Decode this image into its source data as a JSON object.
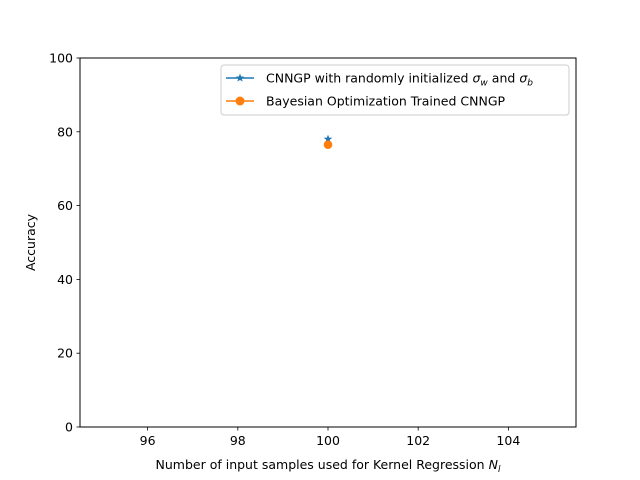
{
  "chart_data": {
    "type": "scatter",
    "title": "",
    "xlabel": "Number of input samples used for Kernel Regression",
    "xlabel_symbol": "N",
    "xlabel_subscript": "l",
    "ylabel": "Accuracy",
    "xlim": [
      94.5,
      105.5
    ],
    "ylim": [
      0,
      100
    ],
    "xticks": [
      96,
      98,
      100,
      102,
      104
    ],
    "yticks": [
      0,
      20,
      40,
      60,
      80,
      100
    ],
    "grid": false,
    "legend_position": "upper right",
    "series": [
      {
        "name": "CNNGP with randomly initialized",
        "name_sym1": "σ",
        "name_sub1": "w",
        "name_mid": "and",
        "name_sym2": "σ",
        "name_sub2": "b",
        "marker": "star",
        "color": "#1f77b4",
        "x": [
          100
        ],
        "y": [
          78
        ]
      },
      {
        "name": "Bayesian Optimization Trained CNNGP",
        "marker": "circle",
        "color": "#ff7f0e",
        "x": [
          100
        ],
        "y": [
          76.5
        ]
      }
    ]
  }
}
